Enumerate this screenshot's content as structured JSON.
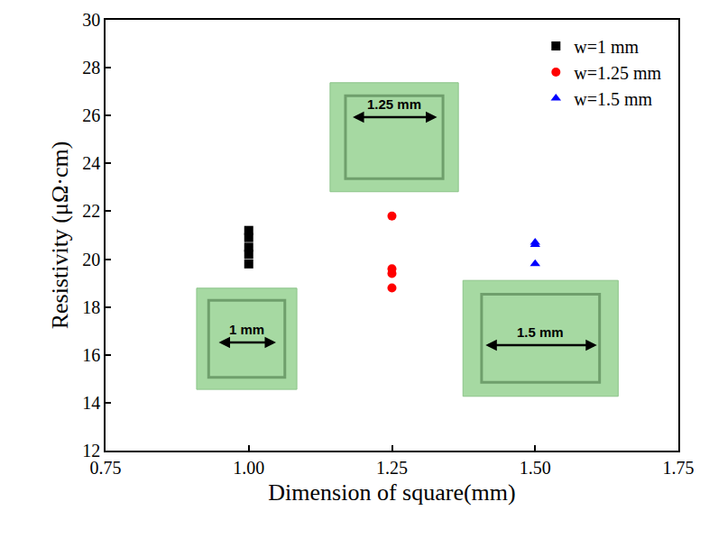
{
  "chart_data": {
    "type": "scatter",
    "x_label": "Dimension of square(mm)",
    "y_label": "Resistivity (μΩ·cm)",
    "xlim": [
      0.75,
      1.75
    ],
    "xticks": [
      0.75,
      {
        "value": 1,
        "label": "1.00"
      },
      1.25,
      {
        "value": 1.5,
        "label": "1.50"
      },
      1.75
    ],
    "ylim": [
      12,
      30
    ],
    "yticks": [
      12,
      14,
      16,
      18,
      20,
      22,
      24,
      26,
      28,
      30
    ],
    "grid": false,
    "legend": "top right",
    "series": [
      {
        "name": "w=1 mm",
        "color": "#000000",
        "marker": "square",
        "x": [
          1,
          1,
          1,
          1,
          1
        ],
        "values": [
          21.2,
          20.9,
          20.5,
          20.2,
          19.8
        ]
      },
      {
        "name": "w=1.25 mm",
        "color": "#ff0000",
        "marker": "circle",
        "x": [
          1.25,
          1.25,
          1.25,
          1.25
        ],
        "values": [
          21.8,
          19.6,
          19.4,
          18.8
        ]
      },
      {
        "name": "w=1.5 mm",
        "color": "#0000ff",
        "marker": "triangle-up",
        "x": [
          1.5,
          1.5,
          1.5
        ],
        "values": [
          20.7,
          20.6,
          19.8
        ]
      }
    ],
    "insets": [
      "1 mm",
      "1.25 mm",
      "1.5 mm"
    ]
  }
}
